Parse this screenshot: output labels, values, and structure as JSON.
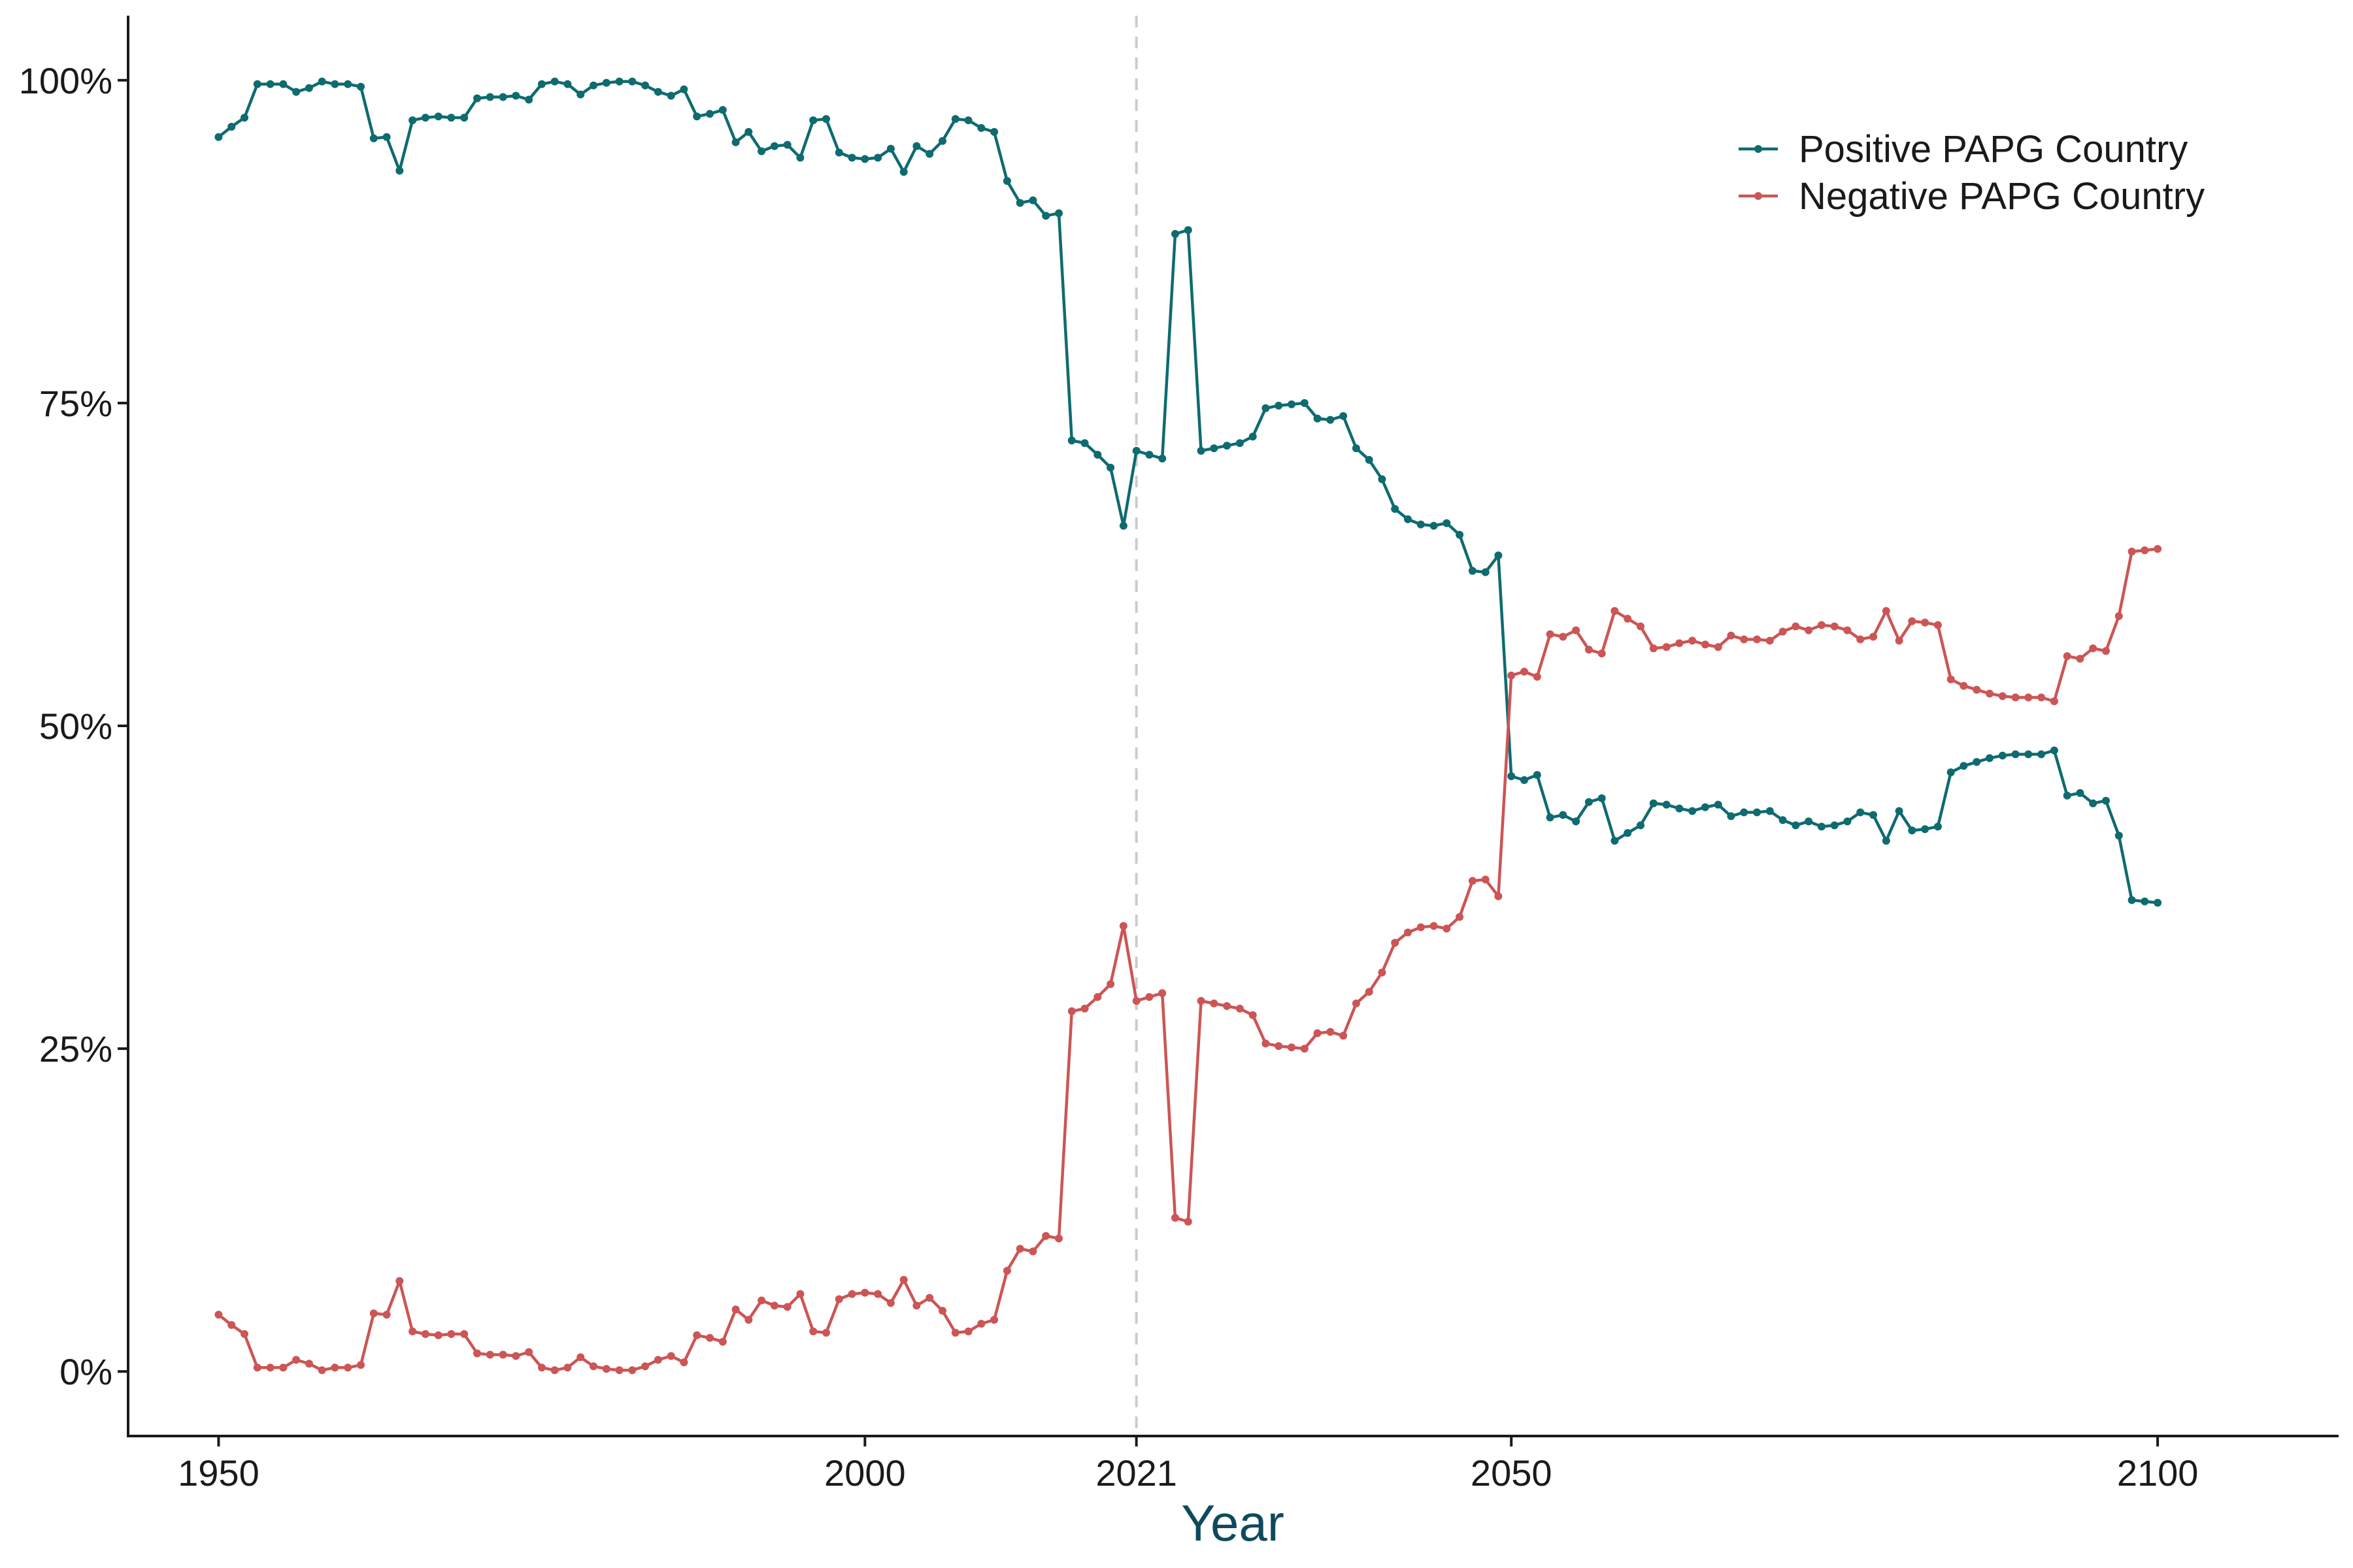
{
  "chart_data": {
    "type": "line",
    "title": "",
    "xlabel": "Year",
    "ylabel": "",
    "xlim": [
      1943,
      2114
    ],
    "ylim": [
      -0.05,
      1.05
    ],
    "x_ticks": [
      1950,
      2000,
      2021,
      2050,
      2100
    ],
    "x_tick_labels": [
      "1950",
      "2000",
      "2021",
      "2050",
      "2100"
    ],
    "y_ticks": [
      0,
      0.25,
      0.5,
      0.75,
      1.0
    ],
    "y_tick_labels": [
      "0%",
      "25%",
      "50%",
      "75%",
      "100%"
    ],
    "reference_line": {
      "x": 2021,
      "style": "dashed",
      "color": "#cccccc"
    },
    "grid": false,
    "legend_position": "top-right",
    "x": [
      1950,
      1951,
      1952,
      1953,
      1954,
      1955,
      1956,
      1957,
      1958,
      1959,
      1960,
      1961,
      1962,
      1963,
      1964,
      1965,
      1966,
      1967,
      1968,
      1969,
      1970,
      1971,
      1972,
      1973,
      1974,
      1975,
      1976,
      1977,
      1978,
      1979,
      1980,
      1981,
      1982,
      1983,
      1984,
      1985,
      1986,
      1987,
      1988,
      1989,
      1990,
      1991,
      1992,
      1993,
      1994,
      1995,
      1996,
      1997,
      1998,
      1999,
      2000,
      2001,
      2002,
      2003,
      2004,
      2005,
      2006,
      2007,
      2008,
      2009,
      2010,
      2011,
      2012,
      2013,
      2014,
      2015,
      2016,
      2017,
      2018,
      2019,
      2020,
      2021,
      2022,
      2023,
      2024,
      2025,
      2026,
      2027,
      2028,
      2029,
      2030,
      2031,
      2032,
      2033,
      2034,
      2035,
      2036,
      2037,
      2038,
      2039,
      2040,
      2041,
      2042,
      2043,
      2044,
      2045,
      2046,
      2047,
      2048,
      2049,
      2050,
      2051,
      2052,
      2053,
      2054,
      2055,
      2056,
      2057,
      2058,
      2059,
      2060,
      2061,
      2062,
      2063,
      2064,
      2065,
      2066,
      2067,
      2068,
      2069,
      2070,
      2071,
      2072,
      2073,
      2074,
      2075,
      2076,
      2077,
      2078,
      2079,
      2080,
      2081,
      2082,
      2083,
      2084,
      2085,
      2086,
      2087,
      2088,
      2089,
      2090,
      2091,
      2092,
      2093,
      2094,
      2095,
      2096,
      2097,
      2098,
      2099,
      2100
    ],
    "series": [
      {
        "name": "Positive PAPG Country",
        "color": "#0e6b70",
        "values": [
          0.956,
          0.964,
          0.971,
          0.997,
          0.997,
          0.997,
          0.991,
          0.994,
          0.999,
          0.997,
          0.997,
          0.995,
          0.955,
          0.956,
          0.93,
          0.969,
          0.971,
          0.972,
          0.971,
          0.971,
          0.986,
          0.987,
          0.987,
          0.988,
          0.985,
          0.997,
          0.999,
          0.997,
          0.989,
          0.996,
          0.998,
          0.999,
          0.999,
          0.996,
          0.991,
          0.988,
          0.993,
          0.972,
          0.974,
          0.977,
          0.952,
          0.96,
          0.945,
          0.949,
          0.95,
          0.94,
          0.969,
          0.97,
          0.944,
          0.94,
          0.939,
          0.94,
          0.947,
          0.929,
          0.949,
          0.943,
          0.953,
          0.97,
          0.969,
          0.963,
          0.96,
          0.922,
          0.905,
          0.907,
          0.895,
          0.897,
          0.721,
          0.719,
          0.71,
          0.7,
          0.655,
          0.713,
          0.71,
          0.707,
          0.881,
          0.884,
          0.713,
          0.715,
          0.717,
          0.719,
          0.724,
          0.746,
          0.748,
          0.749,
          0.75,
          0.738,
          0.737,
          0.74,
          0.715,
          0.706,
          0.691,
          0.668,
          0.66,
          0.656,
          0.655,
          0.657,
          0.648,
          0.62,
          0.619,
          0.632,
          0.461,
          0.458,
          0.462,
          0.429,
          0.431,
          0.426,
          0.441,
          0.444,
          0.411,
          0.417,
          0.423,
          0.44,
          0.439,
          0.436,
          0.434,
          0.437,
          0.439,
          0.43,
          0.433,
          0.433,
          0.434,
          0.427,
          0.423,
          0.426,
          0.422,
          0.423,
          0.426,
          0.433,
          0.431,
          0.411,
          0.434,
          0.419,
          0.42,
          0.422,
          0.464,
          0.469,
          0.472,
          0.475,
          0.477,
          0.478,
          0.478,
          0.478,
          0.481,
          0.446,
          0.448,
          0.44,
          0.442,
          0.415,
          0.365,
          0.364,
          0.363
        ]
      },
      {
        "name": "Negative PAPG Country",
        "color": "#cc5555",
        "values": [
          0.044,
          0.036,
          0.029,
          0.003,
          0.003,
          0.003,
          0.009,
          0.006,
          0.001,
          0.003,
          0.003,
          0.005,
          0.045,
          0.044,
          0.07,
          0.031,
          0.029,
          0.028,
          0.029,
          0.029,
          0.014,
          0.013,
          0.013,
          0.012,
          0.015,
          0.003,
          0.001,
          0.003,
          0.011,
          0.004,
          0.002,
          0.001,
          0.001,
          0.004,
          0.009,
          0.012,
          0.007,
          0.028,
          0.026,
          0.023,
          0.048,
          0.04,
          0.055,
          0.051,
          0.05,
          0.06,
          0.031,
          0.03,
          0.056,
          0.06,
          0.061,
          0.06,
          0.053,
          0.071,
          0.051,
          0.057,
          0.047,
          0.03,
          0.031,
          0.037,
          0.04,
          0.078,
          0.095,
          0.093,
          0.105,
          0.103,
          0.279,
          0.281,
          0.29,
          0.3,
          0.345,
          0.287,
          0.29,
          0.293,
          0.119,
          0.116,
          0.287,
          0.285,
          0.283,
          0.281,
          0.276,
          0.254,
          0.252,
          0.251,
          0.25,
          0.262,
          0.263,
          0.26,
          0.285,
          0.294,
          0.309,
          0.332,
          0.34,
          0.344,
          0.345,
          0.343,
          0.352,
          0.38,
          0.381,
          0.368,
          0.539,
          0.542,
          0.538,
          0.571,
          0.569,
          0.574,
          0.559,
          0.556,
          0.589,
          0.583,
          0.577,
          0.56,
          0.561,
          0.564,
          0.566,
          0.563,
          0.561,
          0.57,
          0.567,
          0.567,
          0.566,
          0.573,
          0.577,
          0.574,
          0.578,
          0.577,
          0.574,
          0.567,
          0.569,
          0.589,
          0.566,
          0.581,
          0.58,
          0.578,
          0.536,
          0.531,
          0.528,
          0.525,
          0.523,
          0.522,
          0.522,
          0.522,
          0.519,
          0.554,
          0.552,
          0.56,
          0.558,
          0.585,
          0.635,
          0.636,
          0.637
        ]
      }
    ]
  }
}
